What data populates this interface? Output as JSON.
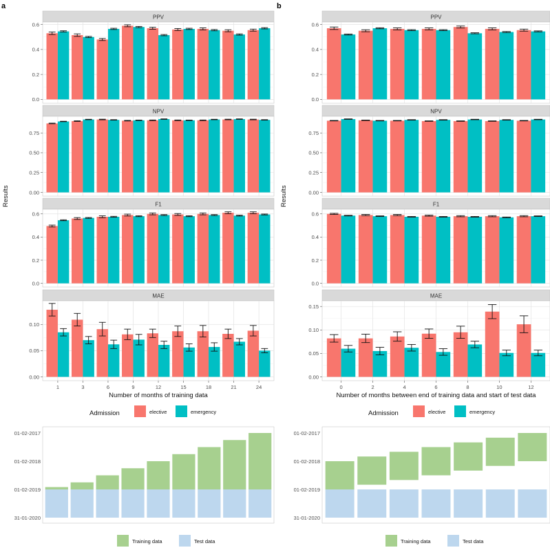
{
  "panel_labels": {
    "a": "a",
    "b": "b"
  },
  "y_axis_label": "Results",
  "legend": {
    "title": "Admission",
    "elective": {
      "label": "elective",
      "color": "#F8766D"
    },
    "emergency": {
      "label": "emergency",
      "color": "#00BFC4"
    }
  },
  "timeline_legend": {
    "training": {
      "label": "Training data",
      "color": "#A7D08F"
    },
    "test": {
      "label": "Test data",
      "color": "#BDD7EE"
    }
  },
  "chart_data": [
    {
      "panel": "a",
      "type": "bar",
      "xlabel": "Number of months of training data",
      "categories": [
        "1",
        "3",
        "6",
        "9",
        "12",
        "15",
        "18",
        "21",
        "24"
      ],
      "facets": [
        {
          "title": "PPV",
          "ylim": [
            0,
            0.62
          ],
          "ticks": [
            0.0,
            0.2,
            0.4,
            0.6
          ],
          "tick_labels": [
            "0.0",
            "0.2",
            "0.4",
            "0.6"
          ],
          "series": [
            {
              "name": "elective",
              "values": [
                0.53,
                0.515,
                0.48,
                0.59,
                0.57,
                0.56,
                0.565,
                0.55,
                0.555
              ],
              "err": [
                0.01,
                0.01,
                0.008,
                0.008,
                0.008,
                0.008,
                0.008,
                0.008,
                0.008
              ]
            },
            {
              "name": "emergency",
              "values": [
                0.545,
                0.5,
                0.565,
                0.58,
                0.515,
                0.565,
                0.555,
                0.52,
                0.57
              ],
              "err": [
                0.005,
                0.005,
                0.005,
                0.005,
                0.005,
                0.005,
                0.005,
                0.005,
                0.005
              ]
            }
          ]
        },
        {
          "title": "NPV",
          "ylim": [
            0,
            0.96
          ],
          "ticks": [
            0.0,
            0.25,
            0.5,
            0.75
          ],
          "tick_labels": [
            "0.00",
            "0.25",
            "0.50",
            "0.75"
          ],
          "series": [
            {
              "name": "elective",
              "values": [
                0.87,
                0.9,
                0.92,
                0.905,
                0.91,
                0.91,
                0.91,
                0.92,
                0.92
              ],
              "err": [
                0.004,
                0.004,
                0.004,
                0.004,
                0.004,
                0.004,
                0.004,
                0.004,
                0.004
              ]
            },
            {
              "name": "emergency",
              "values": [
                0.895,
                0.92,
                0.915,
                0.91,
                0.925,
                0.91,
                0.92,
                0.925,
                0.915
              ],
              "err": [
                0.003,
                0.003,
                0.003,
                0.003,
                0.003,
                0.003,
                0.003,
                0.003,
                0.003
              ]
            }
          ]
        },
        {
          "title": "F1",
          "ylim": [
            0,
            0.64
          ],
          "ticks": [
            0.0,
            0.2,
            0.4,
            0.6
          ],
          "tick_labels": [
            "0.0",
            "0.2",
            "0.4",
            "0.6"
          ],
          "series": [
            {
              "name": "elective",
              "values": [
                0.495,
                0.56,
                0.575,
                0.59,
                0.6,
                0.595,
                0.6,
                0.61,
                0.61
              ],
              "err": [
                0.008,
                0.008,
                0.008,
                0.008,
                0.008,
                0.008,
                0.008,
                0.008,
                0.008
              ]
            },
            {
              "name": "emergency",
              "values": [
                0.545,
                0.565,
                0.575,
                0.58,
                0.59,
                0.58,
                0.59,
                0.585,
                0.595
              ],
              "err": [
                0.004,
                0.004,
                0.004,
                0.004,
                0.004,
                0.004,
                0.004,
                0.004,
                0.004
              ]
            }
          ]
        },
        {
          "title": "MAE",
          "ylim": [
            0,
            0.145
          ],
          "ticks": [
            0.0,
            0.05,
            0.1
          ],
          "tick_labels": [
            "0.00",
            "0.05",
            "0.10"
          ],
          "series": [
            {
              "name": "elective",
              "values": [
                0.128,
                0.109,
                0.091,
                0.081,
                0.083,
                0.087,
                0.087,
                0.082,
                0.088
              ],
              "err": [
                0.012,
                0.012,
                0.013,
                0.01,
                0.008,
                0.01,
                0.011,
                0.009,
                0.01
              ]
            },
            {
              "name": "emergency",
              "values": [
                0.085,
                0.07,
                0.062,
                0.071,
                0.061,
                0.056,
                0.057,
                0.067,
                0.05
              ],
              "err": [
                0.007,
                0.007,
                0.008,
                0.01,
                0.007,
                0.007,
                0.008,
                0.006,
                0.004
              ]
            }
          ]
        }
      ]
    },
    {
      "panel": "b",
      "type": "bar",
      "xlabel": "Number of months between end of training data and start of test data",
      "categories": [
        "0",
        "2",
        "4",
        "6",
        "8",
        "10",
        "12"
      ],
      "facets": [
        {
          "title": "PPV",
          "ylim": [
            0,
            0.62
          ],
          "ticks": [
            0.0,
            0.2,
            0.4,
            0.6
          ],
          "tick_labels": [
            "0.0",
            "0.2",
            "0.4",
            "0.6"
          ],
          "series": [
            {
              "name": "elective",
              "values": [
                0.57,
                0.55,
                0.565,
                0.565,
                0.58,
                0.565,
                0.555
              ],
              "err": [
                0.01,
                0.008,
                0.008,
                0.008,
                0.008,
                0.008,
                0.008
              ]
            },
            {
              "name": "emergency",
              "values": [
                0.52,
                0.57,
                0.555,
                0.555,
                0.53,
                0.54,
                0.545
              ],
              "err": [
                0.004,
                0.004,
                0.004,
                0.004,
                0.004,
                0.004,
                0.004
              ]
            }
          ]
        },
        {
          "title": "NPV",
          "ylim": [
            0,
            0.96
          ],
          "ticks": [
            0.0,
            0.25,
            0.5,
            0.75
          ],
          "tick_labels": [
            "0.00",
            "0.25",
            "0.50",
            "0.75"
          ],
          "series": [
            {
              "name": "elective",
              "values": [
                0.905,
                0.91,
                0.905,
                0.9,
                0.9,
                0.9,
                0.905
              ],
              "err": [
                0.003,
                0.003,
                0.003,
                0.003,
                0.003,
                0.003,
                0.003
              ]
            },
            {
              "name": "emergency",
              "values": [
                0.925,
                0.905,
                0.915,
                0.915,
                0.92,
                0.915,
                0.92
              ],
              "err": [
                0.003,
                0.003,
                0.003,
                0.003,
                0.003,
                0.003,
                0.003
              ]
            }
          ]
        },
        {
          "title": "F1",
          "ylim": [
            0,
            0.64
          ],
          "ticks": [
            0.0,
            0.2,
            0.4,
            0.6
          ],
          "tick_labels": [
            "0.0",
            "0.2",
            "0.4",
            "0.6"
          ],
          "series": [
            {
              "name": "elective",
              "values": [
                0.6,
                0.59,
                0.59,
                0.585,
                0.58,
                0.58,
                0.58
              ],
              "err": [
                0.005,
                0.005,
                0.005,
                0.005,
                0.005,
                0.005,
                0.005
              ]
            },
            {
              "name": "emergency",
              "values": [
                0.585,
                0.58,
                0.575,
                0.575,
                0.575,
                0.57,
                0.58
              ],
              "err": [
                0.003,
                0.003,
                0.003,
                0.003,
                0.003,
                0.003,
                0.003
              ]
            }
          ]
        },
        {
          "title": "MAE",
          "ylim": [
            0,
            0.162
          ],
          "ticks": [
            0.0,
            0.05,
            0.1,
            0.15
          ],
          "tick_labels": [
            "0.00",
            "0.05",
            "0.10",
            "0.15"
          ],
          "series": [
            {
              "name": "elective",
              "values": [
                0.082,
                0.082,
                0.086,
                0.092,
                0.095,
                0.139,
                0.112
              ],
              "err": [
                0.008,
                0.009,
                0.01,
                0.01,
                0.013,
                0.015,
                0.018
              ]
            },
            {
              "name": "emergency",
              "values": [
                0.06,
                0.055,
                0.062,
                0.053,
                0.069,
                0.051,
                0.051
              ],
              "err": [
                0.007,
                0.008,
                0.007,
                0.007,
                0.007,
                0.006,
                0.006
              ]
            }
          ]
        }
      ]
    }
  ],
  "timelines": [
    {
      "panel": "a",
      "y_ticks": [
        "01-02-2017",
        "01-02-2018",
        "01-02-2019",
        "31-01-2020"
      ],
      "training_months": [
        1,
        3,
        6,
        9,
        12,
        15,
        18,
        21,
        24
      ],
      "gap_months": [
        0,
        0,
        0,
        0,
        0,
        0,
        0,
        0,
        0
      ]
    },
    {
      "panel": "b",
      "y_ticks": [
        "01-02-2017",
        "01-02-2018",
        "01-02-2019",
        "31-01-2020"
      ],
      "training_months": [
        12,
        12,
        12,
        12,
        12,
        12,
        12
      ],
      "gap_months": [
        0,
        2,
        4,
        6,
        8,
        10,
        12
      ]
    }
  ]
}
